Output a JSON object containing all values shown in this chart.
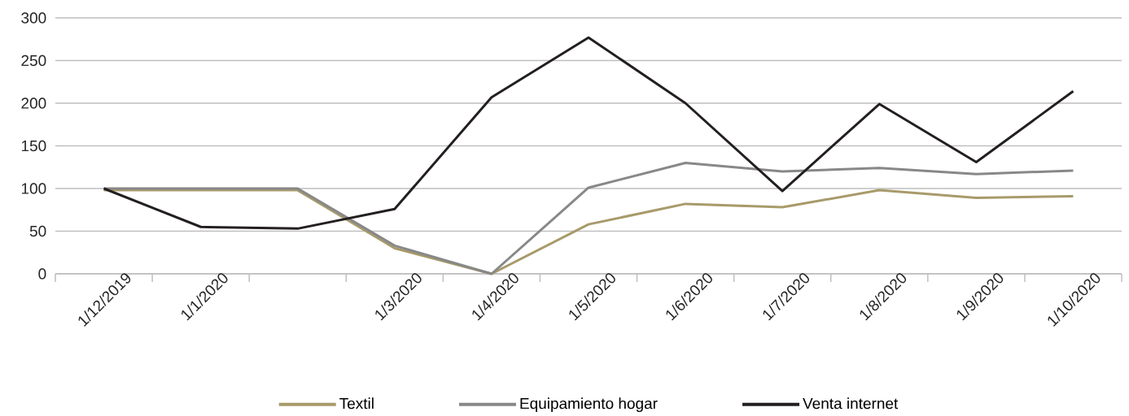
{
  "chart_data": {
    "type": "line",
    "categories": [
      "1/12/2019",
      "1/1/2020",
      null,
      "1/3/2020",
      "1/4/2020",
      "1/5/2020",
      "1/6/2020",
      "1/7/2020",
      "1/8/2020",
      "1/9/2020",
      "1/10/2020"
    ],
    "series": [
      {
        "name": "Textil",
        "color": "#a89a6a",
        "values": [
          98,
          98,
          98,
          30,
          0,
          58,
          82,
          78,
          98,
          89,
          91
        ]
      },
      {
        "name": "Equipamiento hogar",
        "color": "#888888",
        "values": [
          100,
          100,
          100,
          33,
          0,
          101,
          130,
          120,
          124,
          117,
          121
        ]
      },
      {
        "name": "Venta internet",
        "color": "#231f20",
        "values": [
          100,
          55,
          53,
          76,
          207,
          277,
          200,
          97,
          199,
          131,
          214
        ]
      }
    ],
    "ylim": [
      0,
      300
    ],
    "yticks": [
      0,
      50,
      100,
      150,
      200,
      250,
      300
    ],
    "grid": "y",
    "legend": "bottom",
    "marker": "none",
    "line_style": "solid"
  }
}
